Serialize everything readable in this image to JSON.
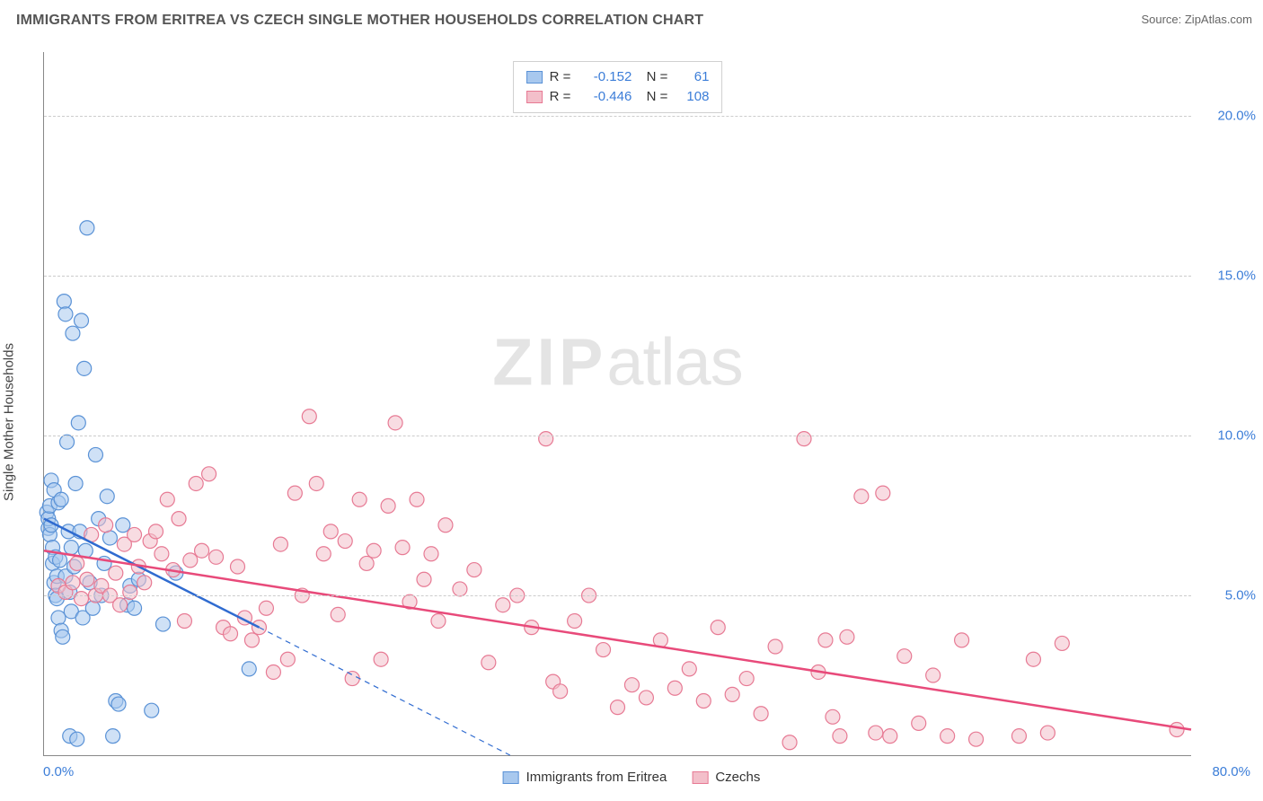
{
  "header": {
    "title": "IMMIGRANTS FROM ERITREA VS CZECH SINGLE MOTHER HOUSEHOLDS CORRELATION CHART",
    "source_prefix": "Source: ",
    "source_name": "ZipAtlas.com"
  },
  "watermark": {
    "zip": "ZIP",
    "atlas": "atlas"
  },
  "chart": {
    "type": "scatter",
    "ylabel": "Single Mother Households",
    "xlim": [
      0,
      80
    ],
    "ylim": [
      0,
      22
    ],
    "x_ticks": [
      {
        "value": 0,
        "label": "0.0%"
      },
      {
        "value": 80,
        "label": "80.0%"
      }
    ],
    "y_ticks": [
      {
        "value": 5,
        "label": "5.0%"
      },
      {
        "value": 10,
        "label": "10.0%"
      },
      {
        "value": 15,
        "label": "15.0%"
      },
      {
        "value": 20,
        "label": "20.0%"
      }
    ],
    "background_color": "#ffffff",
    "grid_color": "#cccccc",
    "marker_radius": 8,
    "marker_opacity": 0.55,
    "series": [
      {
        "id": "eritrea",
        "label": "Immigrants from Eritrea",
        "fill": "#a8c8ee",
        "stroke": "#5a92d6",
        "R": "-0.152",
        "N": "61",
        "trend": {
          "solid": {
            "x1": 0,
            "y1": 7.4,
            "x2": 15,
            "y2": 4.0
          },
          "dashed": {
            "x1": 15,
            "y1": 4.0,
            "x2": 32.5,
            "y2": 0.0
          },
          "stroke": "#2f6bd0",
          "width": 2.5
        },
        "points": [
          [
            0.2,
            7.6
          ],
          [
            0.3,
            7.1
          ],
          [
            0.3,
            7.4
          ],
          [
            0.4,
            7.8
          ],
          [
            0.4,
            6.9
          ],
          [
            0.5,
            8.6
          ],
          [
            0.5,
            7.2
          ],
          [
            0.6,
            6.5
          ],
          [
            0.6,
            6.0
          ],
          [
            0.7,
            5.4
          ],
          [
            0.7,
            8.3
          ],
          [
            0.8,
            6.2
          ],
          [
            0.8,
            5.0
          ],
          [
            0.9,
            4.9
          ],
          [
            0.9,
            5.6
          ],
          [
            1.0,
            4.3
          ],
          [
            1.0,
            7.9
          ],
          [
            1.1,
            6.1
          ],
          [
            1.2,
            3.9
          ],
          [
            1.2,
            8.0
          ],
          [
            1.3,
            3.7
          ],
          [
            1.4,
            14.2
          ],
          [
            1.5,
            5.6
          ],
          [
            1.5,
            13.8
          ],
          [
            1.6,
            9.8
          ],
          [
            1.7,
            7.0
          ],
          [
            1.8,
            5.1
          ],
          [
            1.8,
            0.6
          ],
          [
            1.9,
            4.5
          ],
          [
            1.9,
            6.5
          ],
          [
            2.0,
            13.2
          ],
          [
            2.1,
            5.9
          ],
          [
            2.2,
            8.5
          ],
          [
            2.3,
            0.5
          ],
          [
            2.4,
            10.4
          ],
          [
            2.5,
            7.0
          ],
          [
            2.6,
            13.6
          ],
          [
            2.7,
            4.3
          ],
          [
            2.8,
            12.1
          ],
          [
            2.9,
            6.4
          ],
          [
            3.0,
            16.5
          ],
          [
            3.2,
            5.4
          ],
          [
            3.4,
            4.6
          ],
          [
            3.6,
            9.4
          ],
          [
            3.8,
            7.4
          ],
          [
            4.0,
            5.0
          ],
          [
            4.2,
            6.0
          ],
          [
            4.4,
            8.1
          ],
          [
            4.6,
            6.8
          ],
          [
            4.8,
            0.6
          ],
          [
            5.0,
            1.7
          ],
          [
            5.2,
            1.6
          ],
          [
            5.5,
            7.2
          ],
          [
            5.8,
            4.7
          ],
          [
            6.0,
            5.3
          ],
          [
            6.3,
            4.6
          ],
          [
            6.6,
            5.5
          ],
          [
            7.5,
            1.4
          ],
          [
            8.3,
            4.1
          ],
          [
            9.2,
            5.7
          ],
          [
            14.3,
            2.7
          ]
        ]
      },
      {
        "id": "czechs",
        "label": "Czechs",
        "fill": "#f3bfca",
        "stroke": "#e77a94",
        "R": "-0.446",
        "N": "108",
        "trend": {
          "solid": {
            "x1": 0,
            "y1": 6.4,
            "x2": 80,
            "y2": 0.8
          },
          "stroke": "#e84a7a",
          "width": 2.5
        },
        "points": [
          [
            1.0,
            5.3
          ],
          [
            1.5,
            5.1
          ],
          [
            2.0,
            5.4
          ],
          [
            2.3,
            6.0
          ],
          [
            2.6,
            4.9
          ],
          [
            3.0,
            5.5
          ],
          [
            3.3,
            6.9
          ],
          [
            3.6,
            5.0
          ],
          [
            4.0,
            5.3
          ],
          [
            4.3,
            7.2
          ],
          [
            4.6,
            5.0
          ],
          [
            5.0,
            5.7
          ],
          [
            5.3,
            4.7
          ],
          [
            5.6,
            6.6
          ],
          [
            6.0,
            5.1
          ],
          [
            6.3,
            6.9
          ],
          [
            6.6,
            5.9
          ],
          [
            7.0,
            5.4
          ],
          [
            7.4,
            6.7
          ],
          [
            7.8,
            7.0
          ],
          [
            8.2,
            6.3
          ],
          [
            8.6,
            8.0
          ],
          [
            9.0,
            5.8
          ],
          [
            9.4,
            7.4
          ],
          [
            9.8,
            4.2
          ],
          [
            10.2,
            6.1
          ],
          [
            10.6,
            8.5
          ],
          [
            11.0,
            6.4
          ],
          [
            11.5,
            8.8
          ],
          [
            12.0,
            6.2
          ],
          [
            12.5,
            4.0
          ],
          [
            13.0,
            3.8
          ],
          [
            13.5,
            5.9
          ],
          [
            14.0,
            4.3
          ],
          [
            14.5,
            3.6
          ],
          [
            15.0,
            4.0
          ],
          [
            15.5,
            4.6
          ],
          [
            16.0,
            2.6
          ],
          [
            16.5,
            6.6
          ],
          [
            17.0,
            3.0
          ],
          [
            17.5,
            8.2
          ],
          [
            18.0,
            5.0
          ],
          [
            18.5,
            10.6
          ],
          [
            19.0,
            8.5
          ],
          [
            19.5,
            6.3
          ],
          [
            20.0,
            7.0
          ],
          [
            20.5,
            4.4
          ],
          [
            21.0,
            6.7
          ],
          [
            21.5,
            2.4
          ],
          [
            22.0,
            8.0
          ],
          [
            22.5,
            6.0
          ],
          [
            23.0,
            6.4
          ],
          [
            23.5,
            3.0
          ],
          [
            24.0,
            7.8
          ],
          [
            24.5,
            10.4
          ],
          [
            25.0,
            6.5
          ],
          [
            25.5,
            4.8
          ],
          [
            26.0,
            8.0
          ],
          [
            26.5,
            5.5
          ],
          [
            27.0,
            6.3
          ],
          [
            27.5,
            4.2
          ],
          [
            28.0,
            7.2
          ],
          [
            29.0,
            5.2
          ],
          [
            30.0,
            5.8
          ],
          [
            31.0,
            2.9
          ],
          [
            32.0,
            4.7
          ],
          [
            33.0,
            5.0
          ],
          [
            34.0,
            4.0
          ],
          [
            35.0,
            9.9
          ],
          [
            35.5,
            2.3
          ],
          [
            36.0,
            2.0
          ],
          [
            37.0,
            4.2
          ],
          [
            38.0,
            5.0
          ],
          [
            39.0,
            3.3
          ],
          [
            40.0,
            1.5
          ],
          [
            41.0,
            2.2
          ],
          [
            42.0,
            1.8
          ],
          [
            43.0,
            3.6
          ],
          [
            44.0,
            2.1
          ],
          [
            45.0,
            2.7
          ],
          [
            46.0,
            1.7
          ],
          [
            47.0,
            4.0
          ],
          [
            48.0,
            1.9
          ],
          [
            49.0,
            2.4
          ],
          [
            50.0,
            1.3
          ],
          [
            51.0,
            3.4
          ],
          [
            52.0,
            0.4
          ],
          [
            53.0,
            9.9
          ],
          [
            54.0,
            2.6
          ],
          [
            54.5,
            3.6
          ],
          [
            55.0,
            1.2
          ],
          [
            55.5,
            0.6
          ],
          [
            56.0,
            3.7
          ],
          [
            57.0,
            8.1
          ],
          [
            58.0,
            0.7
          ],
          [
            58.5,
            8.2
          ],
          [
            59.0,
            0.6
          ],
          [
            60.0,
            3.1
          ],
          [
            61.0,
            1.0
          ],
          [
            62.0,
            2.5
          ],
          [
            63.0,
            0.6
          ],
          [
            64.0,
            3.6
          ],
          [
            65.0,
            0.5
          ],
          [
            68.0,
            0.6
          ],
          [
            69.0,
            3.0
          ],
          [
            70.0,
            0.7
          ],
          [
            71.0,
            3.5
          ],
          [
            79.0,
            0.8
          ]
        ]
      }
    ]
  },
  "legend_bottom": [
    {
      "series": "eritrea"
    },
    {
      "series": "czechs"
    }
  ]
}
